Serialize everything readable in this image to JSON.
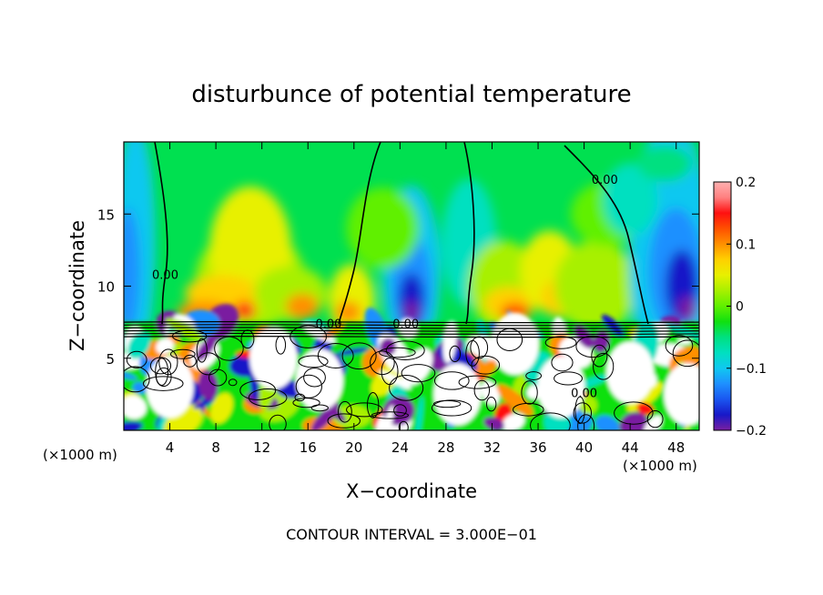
{
  "chart_data": {
    "type": "heatmap",
    "title": "disturbunce of potential temperature",
    "xlabel": "X−coordinate",
    "ylabel": "Z−coordinate",
    "x_unit_left": "(×1000 m)",
    "x_unit_right": "(×1000 m)",
    "footer": "CONTOUR INTERVAL = 3.000E−01",
    "xlim": [
      0,
      50
    ],
    "ylim": [
      0,
      20
    ],
    "x_ticks": [
      4,
      8,
      12,
      16,
      20,
      24,
      28,
      32,
      36,
      40,
      44,
      48
    ],
    "x_tick_labels": [
      "4",
      "8",
      "12",
      "16",
      "20",
      "24",
      "28",
      "32",
      "36",
      "40",
      "44",
      "48"
    ],
    "y_ticks": [
      5,
      10,
      15
    ],
    "y_tick_labels": [
      "5",
      "10",
      "15"
    ],
    "colorbar": {
      "range": [
        -0.2,
        0.2
      ],
      "ticks": [
        -0.2,
        -0.1,
        0,
        0.1,
        0.2
      ],
      "tick_labels": [
        "−0.2",
        "−0.1",
        "0",
        "0.1",
        "0.2"
      ],
      "colors": [
        "#7a1fa0",
        "#1818c8",
        "#1a56f0",
        "#1e90ff",
        "#10c8f0",
        "#00e0c0",
        "#00e080",
        "#10e010",
        "#60f000",
        "#a8f000",
        "#e8f000",
        "#ffd000",
        "#ff9000",
        "#ff5000",
        "#ff1010",
        "#ff8080",
        "#ffb0b0"
      ]
    },
    "contour_labels": [
      {
        "text": "0.00",
        "x": 3.6,
        "z": 10.5
      },
      {
        "text": "0.00",
        "x": 41.8,
        "z": 17.1
      },
      {
        "text": "0.00",
        "x": 17.8,
        "z": 7.1
      },
      {
        "text": "0.00",
        "x": 24.5,
        "z": 7.1
      },
      {
        "text": "0.00",
        "x": 40.0,
        "z": 2.3
      }
    ]
  }
}
